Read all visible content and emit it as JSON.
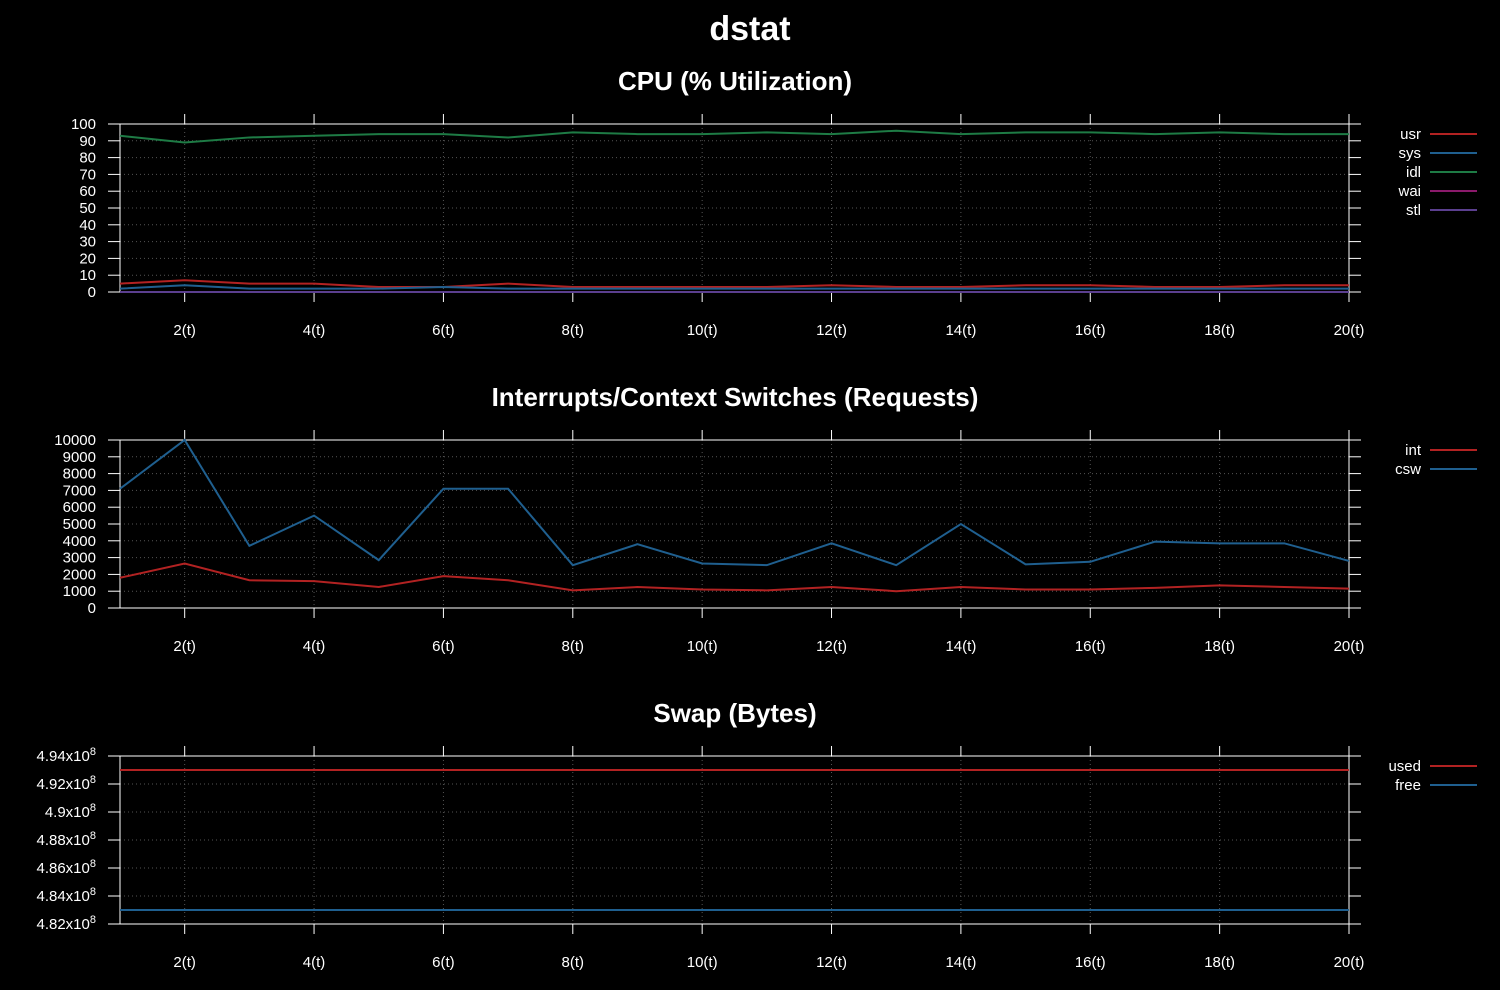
{
  "title": "dstat",
  "colors": {
    "red": "#b22222",
    "blue": "#1f5f8f",
    "green": "#1e7b45",
    "magenta": "#8b1a6b",
    "purple": "#5b3f8f"
  },
  "chart_data": [
    {
      "type": "line",
      "title": "CPU (% Utilization)",
      "x": [
        1,
        2,
        3,
        4,
        5,
        6,
        7,
        8,
        9,
        10,
        11,
        12,
        13,
        14,
        15,
        16,
        17,
        18,
        19,
        20
      ],
      "xticks": [
        "2(t)",
        "4(t)",
        "6(t)",
        "8(t)",
        "10(t)",
        "12(t)",
        "14(t)",
        "16(t)",
        "18(t)",
        "20(t)"
      ],
      "xtick_values": [
        2,
        4,
        6,
        8,
        10,
        12,
        14,
        16,
        18,
        20
      ],
      "xlim": [
        1,
        20
      ],
      "ylim": [
        0,
        100
      ],
      "yticks": [
        "0",
        "10",
        "20",
        "30",
        "40",
        "50",
        "60",
        "70",
        "80",
        "90",
        "100"
      ],
      "ytick_values": [
        0,
        10,
        20,
        30,
        40,
        50,
        60,
        70,
        80,
        90,
        100
      ],
      "grid": true,
      "legend": "right",
      "series": [
        {
          "name": "usr",
          "color": "#b22222",
          "values": [
            5,
            7,
            5,
            5,
            3,
            3,
            5,
            3,
            3,
            3,
            3,
            4,
            3,
            3,
            4,
            4,
            3,
            3,
            4,
            4
          ]
        },
        {
          "name": "sys",
          "color": "#1f5f8f",
          "values": [
            2,
            4,
            2,
            2,
            2,
            3,
            2,
            2,
            2,
            2,
            2,
            2,
            2,
            2,
            2,
            2,
            2,
            2,
            2,
            2
          ]
        },
        {
          "name": "idl",
          "color": "#1e7b45",
          "values": [
            93,
            89,
            92,
            93,
            94,
            94,
            92,
            95,
            94,
            94,
            95,
            94,
            96,
            94,
            95,
            95,
            94,
            95,
            94,
            94
          ]
        },
        {
          "name": "wai",
          "color": "#8b1a6b",
          "values": [
            0,
            0,
            0,
            0,
            0,
            0,
            0,
            0,
            0,
            0,
            0,
            0,
            0,
            0,
            0,
            0,
            0,
            0,
            0,
            0
          ]
        },
        {
          "name": "stl",
          "color": "#5b3f8f",
          "values": [
            0,
            0,
            0,
            0,
            0,
            0,
            0,
            0,
            0,
            0,
            0,
            0,
            0,
            0,
            0,
            0,
            0,
            0,
            0,
            0
          ]
        }
      ]
    },
    {
      "type": "line",
      "title": "Interrupts/Context Switches (Requests)",
      "x": [
        1,
        2,
        3,
        4,
        5,
        6,
        7,
        8,
        9,
        10,
        11,
        12,
        13,
        14,
        15,
        16,
        17,
        18,
        19,
        20
      ],
      "xticks": [
        "2(t)",
        "4(t)",
        "6(t)",
        "8(t)",
        "10(t)",
        "12(t)",
        "14(t)",
        "16(t)",
        "18(t)",
        "20(t)"
      ],
      "xtick_values": [
        2,
        4,
        6,
        8,
        10,
        12,
        14,
        16,
        18,
        20
      ],
      "xlim": [
        1,
        20
      ],
      "ylim": [
        0,
        10000
      ],
      "yticks": [
        "0",
        "1000",
        "2000",
        "3000",
        "4000",
        "5000",
        "6000",
        "7000",
        "8000",
        "9000",
        "10000"
      ],
      "ytick_values": [
        0,
        1000,
        2000,
        3000,
        4000,
        5000,
        6000,
        7000,
        8000,
        9000,
        10000
      ],
      "grid": true,
      "legend": "right",
      "series": [
        {
          "name": "int",
          "color": "#b22222",
          "values": [
            1800,
            2650,
            1650,
            1600,
            1250,
            1900,
            1650,
            1050,
            1250,
            1100,
            1050,
            1250,
            1000,
            1250,
            1100,
            1100,
            1200,
            1350,
            1250,
            1150
          ]
        },
        {
          "name": "csw",
          "color": "#1f5f8f",
          "values": [
            7100,
            10000,
            3700,
            5500,
            2850,
            7100,
            7100,
            2550,
            3800,
            2650,
            2550,
            3850,
            2550,
            5000,
            2600,
            2750,
            3950,
            3850,
            3850,
            2800
          ]
        }
      ]
    },
    {
      "type": "line",
      "title": "Swap (Bytes)",
      "x": [
        1,
        2,
        3,
        4,
        5,
        6,
        7,
        8,
        9,
        10,
        11,
        12,
        13,
        14,
        15,
        16,
        17,
        18,
        19,
        20
      ],
      "xticks": [
        "2(t)",
        "4(t)",
        "6(t)",
        "8(t)",
        "10(t)",
        "12(t)",
        "14(t)",
        "16(t)",
        "18(t)",
        "20(t)"
      ],
      "xtick_values": [
        2,
        4,
        6,
        8,
        10,
        12,
        14,
        16,
        18,
        20
      ],
      "xlim": [
        1,
        20
      ],
      "ylim": [
        482000000,
        494000000
      ],
      "yticks": [
        {
          "mant": "4.82x10",
          "exp": "8"
        },
        {
          "mant": "4.84x10",
          "exp": "8"
        },
        {
          "mant": "4.86x10",
          "exp": "8"
        },
        {
          "mant": "4.88x10",
          "exp": "8"
        },
        {
          "mant": "4.9x10",
          "exp": "8"
        },
        {
          "mant": "4.92x10",
          "exp": "8"
        },
        {
          "mant": "4.94x10",
          "exp": "8"
        }
      ],
      "ytick_values": [
        482000000,
        484000000,
        486000000,
        488000000,
        490000000,
        492000000,
        494000000
      ],
      "grid": true,
      "legend": "right",
      "series": [
        {
          "name": "used",
          "color": "#b22222",
          "values": [
            493000000,
            493000000,
            493000000,
            493000000,
            493000000,
            493000000,
            493000000,
            493000000,
            493000000,
            493000000,
            493000000,
            493000000,
            493000000,
            493000000,
            493000000,
            493000000,
            493000000,
            493000000,
            493000000,
            493000000
          ]
        },
        {
          "name": "free",
          "color": "#1f5f8f",
          "values": [
            483000000,
            483000000,
            483000000,
            483000000,
            483000000,
            483000000,
            483000000,
            483000000,
            483000000,
            483000000,
            483000000,
            483000000,
            483000000,
            483000000,
            483000000,
            483000000,
            483000000,
            483000000,
            483000000,
            483000000
          ]
        }
      ]
    }
  ]
}
